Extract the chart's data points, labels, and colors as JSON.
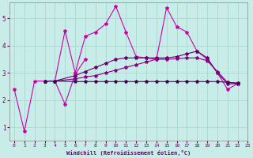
{
  "xlabel": "Windchill (Refroidissement éolien,°C)",
  "bg_color": "#c8ece8",
  "grid_color": "#a8d8d0",
  "line_colors": [
    "#cc00aa",
    "#cc00aa",
    "#660066",
    "#880088",
    "#440055"
  ],
  "xlim": [
    -0.5,
    23
  ],
  "ylim": [
    0.5,
    5.6
  ],
  "xticks": [
    0,
    1,
    2,
    3,
    4,
    5,
    6,
    7,
    8,
    9,
    10,
    11,
    12,
    13,
    14,
    15,
    16,
    17,
    18,
    19,
    20,
    21,
    22,
    23
  ],
  "yticks": [
    1,
    2,
    3,
    4,
    5
  ],
  "series": [
    {
      "x": [
        0,
        1,
        2,
        3,
        4,
        5,
        6,
        7,
        8,
        9,
        10,
        11,
        12,
        13,
        14,
        15,
        16,
        17,
        18,
        19,
        20,
        21,
        22
      ],
      "y": [
        2.4,
        0.85,
        2.7,
        2.7,
        2.7,
        4.55,
        3.0,
        4.35,
        4.5,
        4.8,
        5.45,
        4.5,
        3.6,
        3.55,
        3.5,
        5.4,
        4.7,
        4.5,
        3.8,
        3.5,
        3.0,
        2.4,
        2.6
      ]
    },
    {
      "x": [
        3,
        4,
        5,
        6,
        7
      ],
      "y": [
        2.7,
        2.7,
        1.85,
        2.95,
        3.5
      ]
    },
    {
      "x": [
        3,
        4,
        6,
        7,
        8,
        9,
        10,
        11,
        12,
        13,
        14,
        15,
        16,
        17,
        18,
        19,
        20,
        21,
        22
      ],
      "y": [
        2.7,
        2.7,
        2.9,
        3.05,
        3.2,
        3.35,
        3.5,
        3.55,
        3.55,
        3.55,
        3.55,
        3.55,
        3.6,
        3.7,
        3.8,
        3.55,
        3.0,
        2.6,
        2.6
      ]
    },
    {
      "x": [
        3,
        4,
        6,
        7,
        8,
        9,
        10,
        11,
        12,
        13,
        14,
        15,
        16,
        17,
        18,
        19,
        20,
        21,
        22
      ],
      "y": [
        2.7,
        2.7,
        2.78,
        2.85,
        2.9,
        3.0,
        3.1,
        3.2,
        3.3,
        3.4,
        3.5,
        3.5,
        3.52,
        3.55,
        3.55,
        3.45,
        3.05,
        2.65,
        2.62
      ]
    },
    {
      "x": [
        3,
        4,
        6,
        7,
        8,
        9,
        10,
        11,
        12,
        13,
        14,
        15,
        16,
        17,
        18,
        19,
        20,
        21,
        22
      ],
      "y": [
        2.7,
        2.7,
        2.68,
        2.68,
        2.68,
        2.68,
        2.68,
        2.68,
        2.68,
        2.68,
        2.68,
        2.68,
        2.68,
        2.68,
        2.68,
        2.68,
        2.68,
        2.65,
        2.62
      ]
    }
  ],
  "marker": "*",
  "markersize": 3,
  "linewidth": 0.8
}
